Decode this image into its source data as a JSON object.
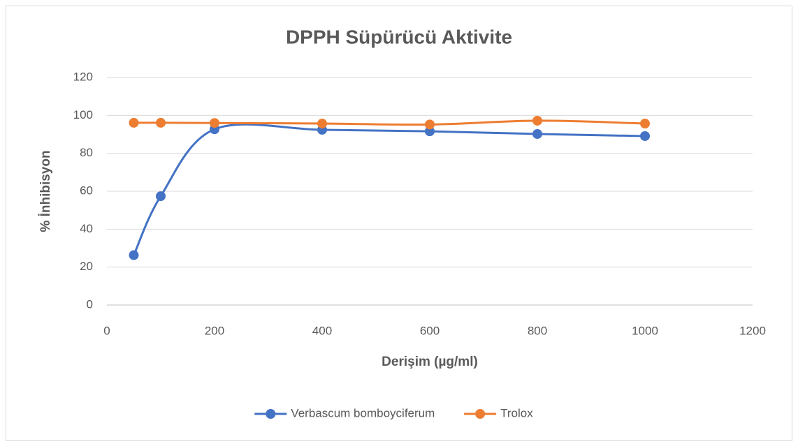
{
  "chart_data": {
    "type": "scatter",
    "smooth": true,
    "title": "DPPH Süpürücü Aktivite",
    "x_label": "Derişim (µg/ml)",
    "y_label": "% İnhibisyon",
    "x": [
      50,
      100,
      200,
      400,
      600,
      800,
      1000
    ],
    "series": [
      {
        "name": "Verbascum bomboyciferum",
        "color": "#4472c4",
        "values": [
          26.3,
          57.4,
          92.7,
          92.4,
          91.6,
          90.2,
          89.1
        ]
      },
      {
        "name": "Trolox",
        "color": "#ed7d31",
        "values": [
          96.1,
          96.1,
          96.0,
          95.7,
          95.2,
          97.2,
          95.7
        ]
      }
    ],
    "xlim": [
      0,
      1200
    ],
    "xticks": [
      0,
      200,
      400,
      600,
      800,
      1000,
      1200
    ],
    "ylim": [
      0,
      120
    ],
    "yticks": [
      0,
      20,
      40,
      60,
      80,
      100,
      120
    ],
    "grid": true,
    "legend": "bottom"
  }
}
